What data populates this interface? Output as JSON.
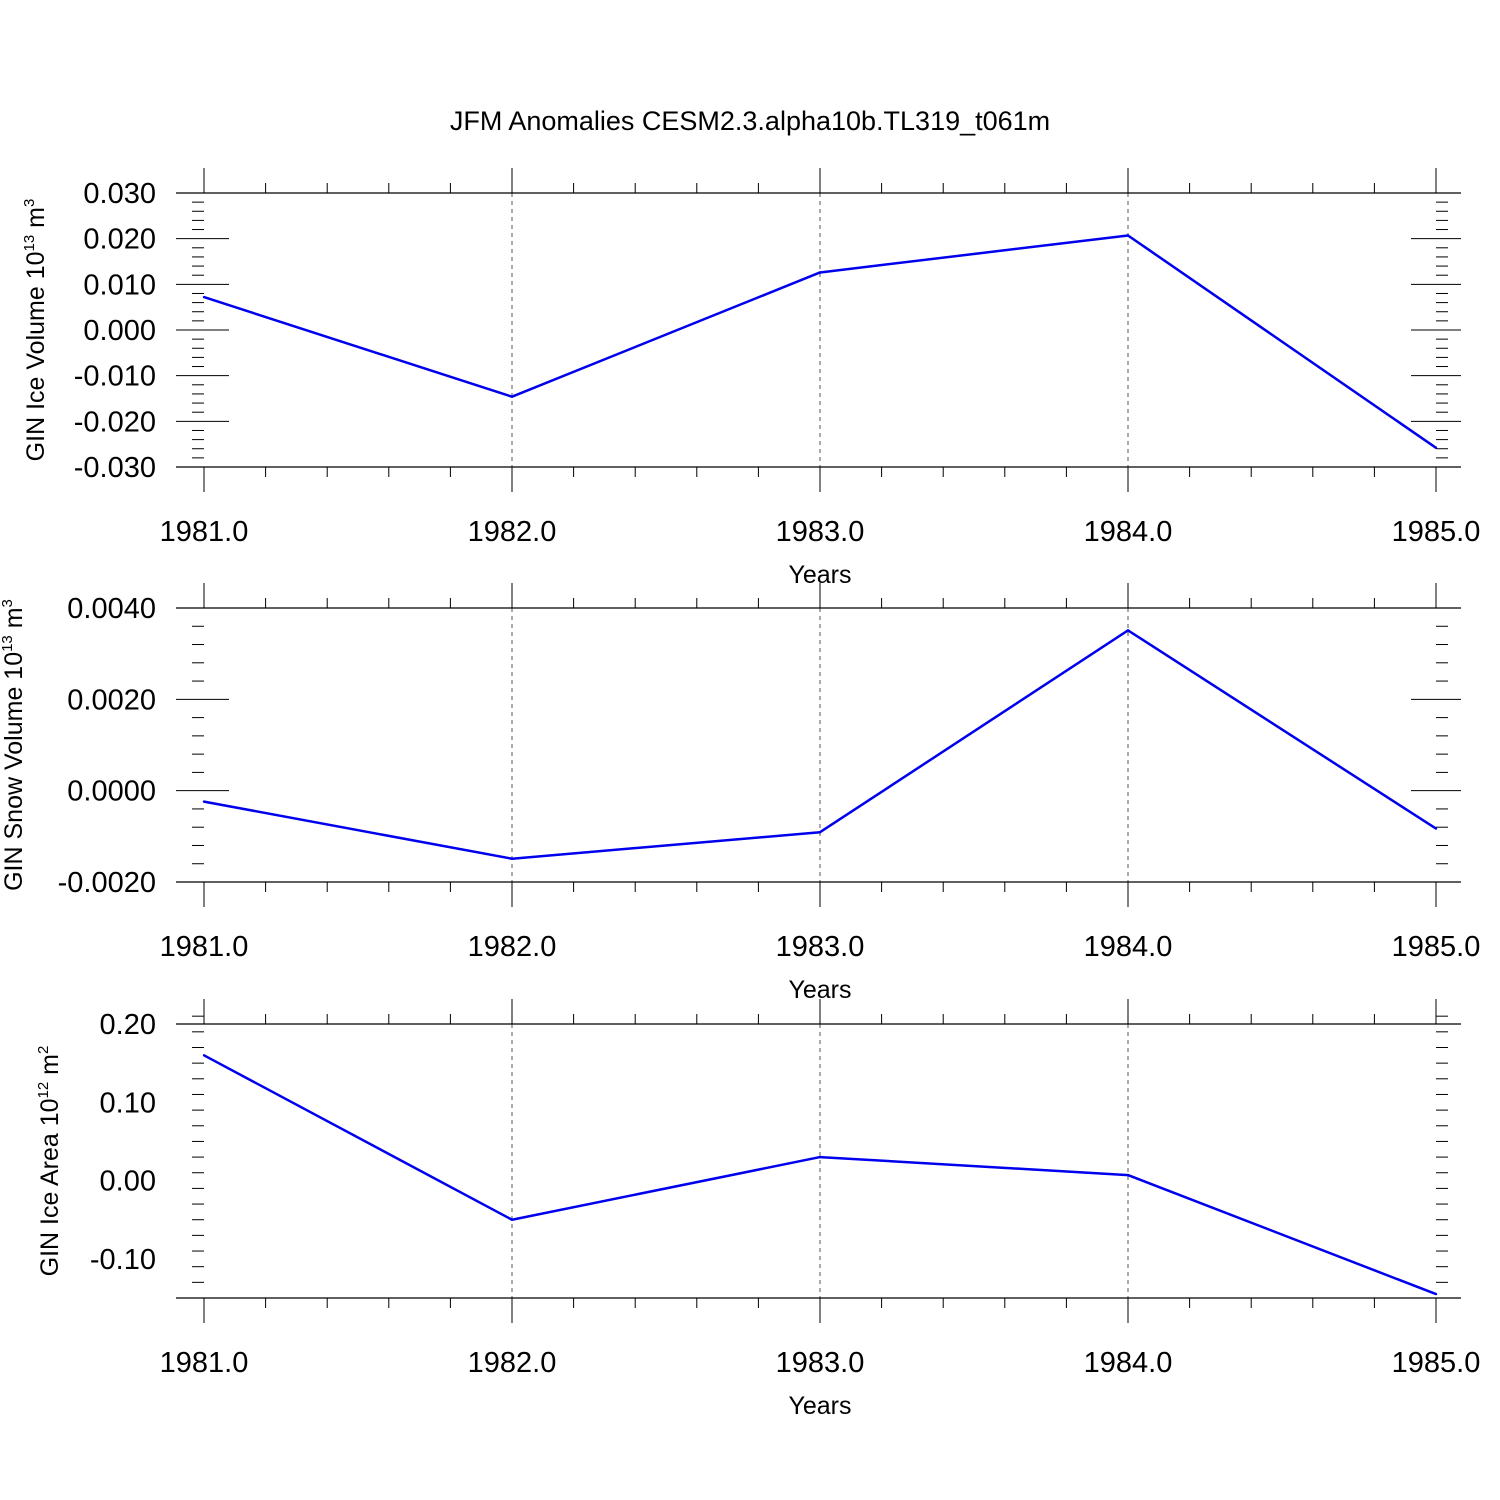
{
  "title": "JFM Anomalies CESM2.3.alpha10b.TL319_t061m",
  "colors": {
    "series": "#0000ee",
    "axis": "#000000",
    "grid": "#555555"
  },
  "chart_data": [
    {
      "type": "line",
      "ylabel": "GIN Ice Volume 10",
      "ylabel_sup1": "13",
      "ylabel_unit": " m",
      "ylabel_sup2": "3",
      "xlabel": "Years",
      "x": [
        1981,
        1982,
        1983,
        1984,
        1985
      ],
      "y": [
        0.0072,
        -0.0146,
        0.0126,
        0.0207,
        -0.0258
      ],
      "ylim": [
        -0.03,
        0.03
      ],
      "xlim": [
        1981,
        1985
      ],
      "yticks": [
        -0.03,
        -0.02,
        -0.01,
        0.0,
        0.01,
        0.02,
        0.03
      ],
      "ytick_labels": [
        "-0.030",
        "-0.020",
        "-0.010",
        "0.000",
        "0.010",
        "0.020",
        "0.030"
      ],
      "xtick_labels": [
        "1981.0",
        "1982.0",
        "1983.0",
        "1984.0",
        "1985.0"
      ],
      "grid": "vertical dashed"
    },
    {
      "type": "line",
      "ylabel": "GIN Snow Volume 10",
      "ylabel_sup1": "13",
      "ylabel_unit": " m",
      "ylabel_sup2": "3",
      "xlabel": "Years",
      "x": [
        1981,
        1982,
        1983,
        1984,
        1985
      ],
      "y": [
        -0.00024,
        -0.00149,
        -0.00091,
        0.00351,
        -0.00083
      ],
      "ylim": [
        -0.002,
        0.004
      ],
      "xlim": [
        1981,
        1985
      ],
      "yticks": [
        -0.002,
        0.0,
        0.002,
        0.004
      ],
      "ytick_labels": [
        "-0.0020",
        "0.0000",
        "0.0020",
        "0.0040"
      ],
      "xtick_labels": [
        "1981.0",
        "1982.0",
        "1983.0",
        "1984.0",
        "1985.0"
      ],
      "grid": "vertical dashed"
    },
    {
      "type": "line",
      "ylabel": "GIN Ice Area 10",
      "ylabel_sup1": "12",
      "ylabel_unit": " m",
      "ylabel_sup2": "2",
      "xlabel": "Years",
      "x": [
        1981,
        1982,
        1983,
        1984,
        1985
      ],
      "y": [
        0.16,
        -0.05,
        0.03,
        0.007,
        -0.145
      ],
      "ylim": [
        -0.15,
        0.2
      ],
      "xlim": [
        1981,
        1985
      ],
      "yticks": [
        -0.1,
        0.0,
        0.1,
        0.2
      ],
      "ytick_labels": [
        "-0.10",
        "0.00",
        "0.10",
        "0.20"
      ],
      "xtick_labels": [
        "1981.0",
        "1982.0",
        "1983.0",
        "1984.0",
        "1985.0"
      ],
      "grid": "vertical dashed"
    }
  ]
}
